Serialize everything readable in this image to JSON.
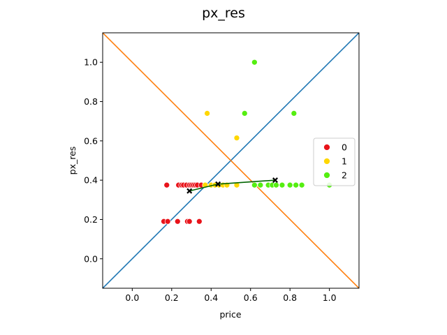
{
  "chart_data": {
    "type": "scatter",
    "title": "px_res",
    "xlabel": "price",
    "ylabel": "px_res",
    "xlim": [
      -0.15,
      1.15
    ],
    "ylim": [
      -0.15,
      1.15
    ],
    "xticks": [
      "0.0",
      "0.2",
      "0.4",
      "0.6",
      "0.8",
      "1.0"
    ],
    "yticks": [
      "0.0",
      "0.2",
      "0.4",
      "0.6",
      "0.8",
      "1.0"
    ],
    "grid": false,
    "legend_position": "right",
    "series": [
      {
        "name": "0",
        "color": "#e8131a",
        "points": [
          [
            0.16,
            0.19
          ],
          [
            0.18,
            0.19
          ],
          [
            0.23,
            0.19
          ],
          [
            0.28,
            0.19
          ],
          [
            0.29,
            0.19
          ],
          [
            0.34,
            0.19
          ],
          [
            0.175,
            0.375
          ],
          [
            0.235,
            0.375
          ],
          [
            0.25,
            0.375
          ],
          [
            0.26,
            0.375
          ],
          [
            0.275,
            0.375
          ],
          [
            0.29,
            0.375
          ],
          [
            0.3,
            0.375
          ],
          [
            0.31,
            0.375
          ],
          [
            0.32,
            0.375
          ],
          [
            0.33,
            0.375
          ],
          [
            0.35,
            0.375
          ]
        ]
      },
      {
        "name": "1",
        "color": "#ffd700",
        "points": [
          [
            0.38,
            0.74
          ],
          [
            0.53,
            0.615
          ],
          [
            0.37,
            0.375
          ],
          [
            0.4,
            0.375
          ],
          [
            0.42,
            0.375
          ],
          [
            0.44,
            0.375
          ],
          [
            0.46,
            0.375
          ],
          [
            0.48,
            0.375
          ],
          [
            0.53,
            0.375
          ]
        ]
      },
      {
        "name": "2",
        "color": "#55ee11",
        "points": [
          [
            0.62,
            1.0
          ],
          [
            0.57,
            0.74
          ],
          [
            0.82,
            0.74
          ],
          [
            0.62,
            0.375
          ],
          [
            0.65,
            0.375
          ],
          [
            0.69,
            0.375
          ],
          [
            0.71,
            0.375
          ],
          [
            0.73,
            0.375
          ],
          [
            0.76,
            0.375
          ],
          [
            0.8,
            0.375
          ],
          [
            0.83,
            0.375
          ],
          [
            0.86,
            0.375
          ],
          [
            1.0,
            0.375
          ]
        ]
      }
    ],
    "reference_lines": [
      {
        "name": "diagonal",
        "from": [
          -0.15,
          -0.15
        ],
        "to": [
          1.15,
          1.15
        ],
        "color": "#1f77b4"
      },
      {
        "name": "anti-diagonal",
        "from": [
          -0.15,
          1.15
        ],
        "to": [
          1.15,
          -0.15
        ],
        "color": "#ff7f0e"
      }
    ],
    "centroids": [
      [
        0.29,
        0.345
      ],
      [
        0.435,
        0.38
      ],
      [
        0.725,
        0.4
      ]
    ],
    "centroid_line_color": "#006400",
    "centroid_marker_color": "#000000"
  }
}
